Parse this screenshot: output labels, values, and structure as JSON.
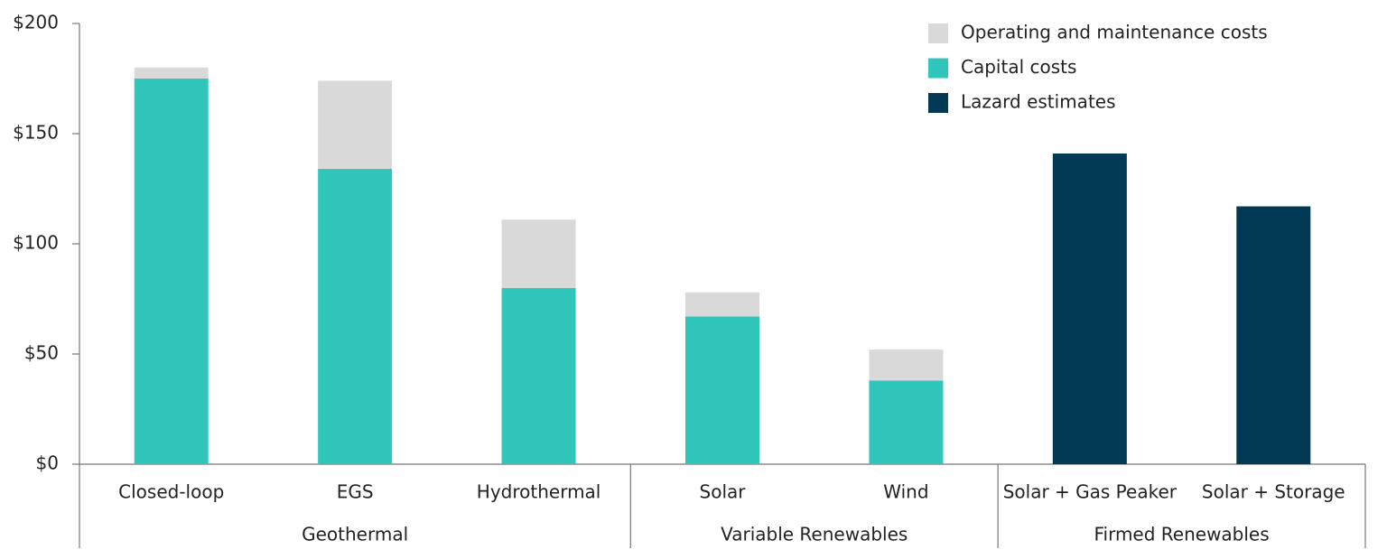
{
  "chart_data": {
    "type": "stacked_bar",
    "categories": [
      "Closed-loop",
      "EGS",
      "Hydrothermal",
      "Solar",
      "Wind",
      "Solar + Gas Peaker",
      "Solar + Storage"
    ],
    "groups": [
      {
        "label": "Geothermal",
        "size": 3
      },
      {
        "label": "Variable Renewables",
        "size": 2
      },
      {
        "label": "Firmed Renewables",
        "size": 2
      }
    ],
    "series": [
      {
        "name": "Operating and maintenance costs",
        "color": "#d9d9d9",
        "values": [
          5,
          40,
          31,
          11,
          14,
          null,
          null
        ]
      },
      {
        "name": "Capital costs",
        "color": "#31c6bb",
        "values": [
          175,
          134,
          80,
          67,
          38,
          null,
          null
        ]
      },
      {
        "name": "Lazard estimates",
        "color": "#023a56",
        "values": [
          null,
          null,
          null,
          null,
          null,
          141,
          117
        ]
      }
    ],
    "ylim": [
      0,
      200
    ],
    "yticks": [
      {
        "value": 0,
        "label": "$0"
      },
      {
        "value": 50,
        "label": "$50"
      },
      {
        "value": 100,
        "label": "$100"
      },
      {
        "value": 150,
        "label": "$150"
      },
      {
        "value": 200,
        "label": "$200"
      }
    ],
    "legend": "top-right"
  }
}
